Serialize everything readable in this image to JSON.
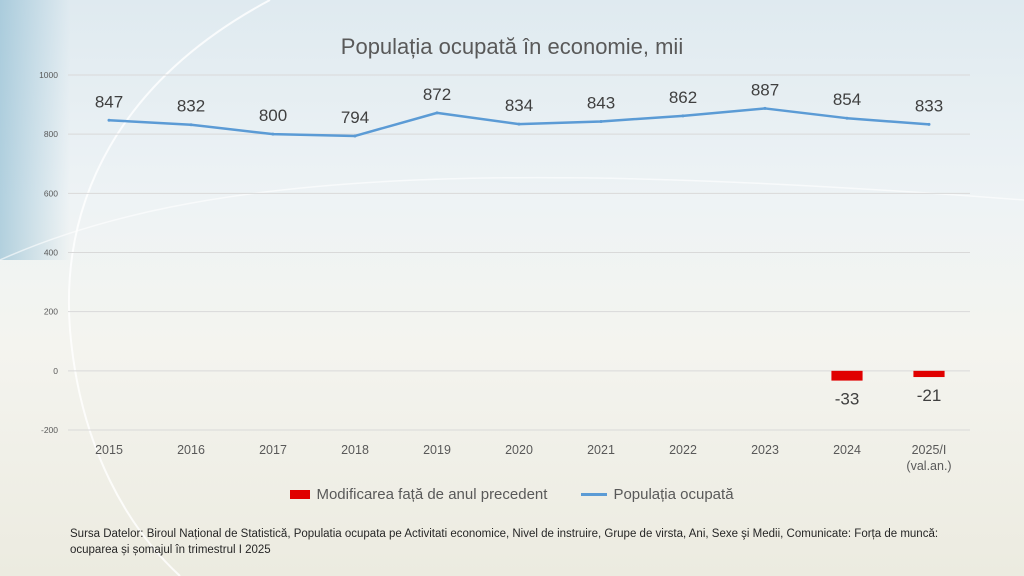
{
  "chart_data": {
    "type": "bar+line",
    "title": "Populația ocupată în economie, mii",
    "categories": [
      "2015",
      "2016",
      "2017",
      "2018",
      "2019",
      "2020",
      "2021",
      "2022",
      "2023",
      "2024",
      "2025/I|(val.an.)"
    ],
    "series": [
      {
        "name": "Modificarea față de anul precedent",
        "type": "bar",
        "color": "#e00000",
        "values": [
          null,
          null,
          null,
          null,
          null,
          null,
          null,
          null,
          null,
          -33,
          -21
        ]
      },
      {
        "name": "Populația ocupată",
        "type": "line",
        "color": "#5b9bd5",
        "values": [
          847,
          832,
          800,
          794,
          872,
          834,
          843,
          862,
          887,
          854,
          833
        ]
      }
    ],
    "ylim": [
      -200,
      1000
    ],
    "yticks": [
      -200,
      0,
      200,
      400,
      600,
      800,
      1000
    ],
    "grid": true,
    "legend_position": "bottom"
  },
  "legend": {
    "bar_label": "Modificarea față de anul precedent",
    "line_label": "Populația ocupată"
  },
  "source_text": "Sursa Datelor: Biroul Național de Statistică, Populatia ocupata pe Activitati economice, Nivel de instruire, Grupe de virsta, Ani, Sexe şi Medii, Comunicate: Forța de muncă: ocuparea și șomajul în trimestrul I 2025"
}
